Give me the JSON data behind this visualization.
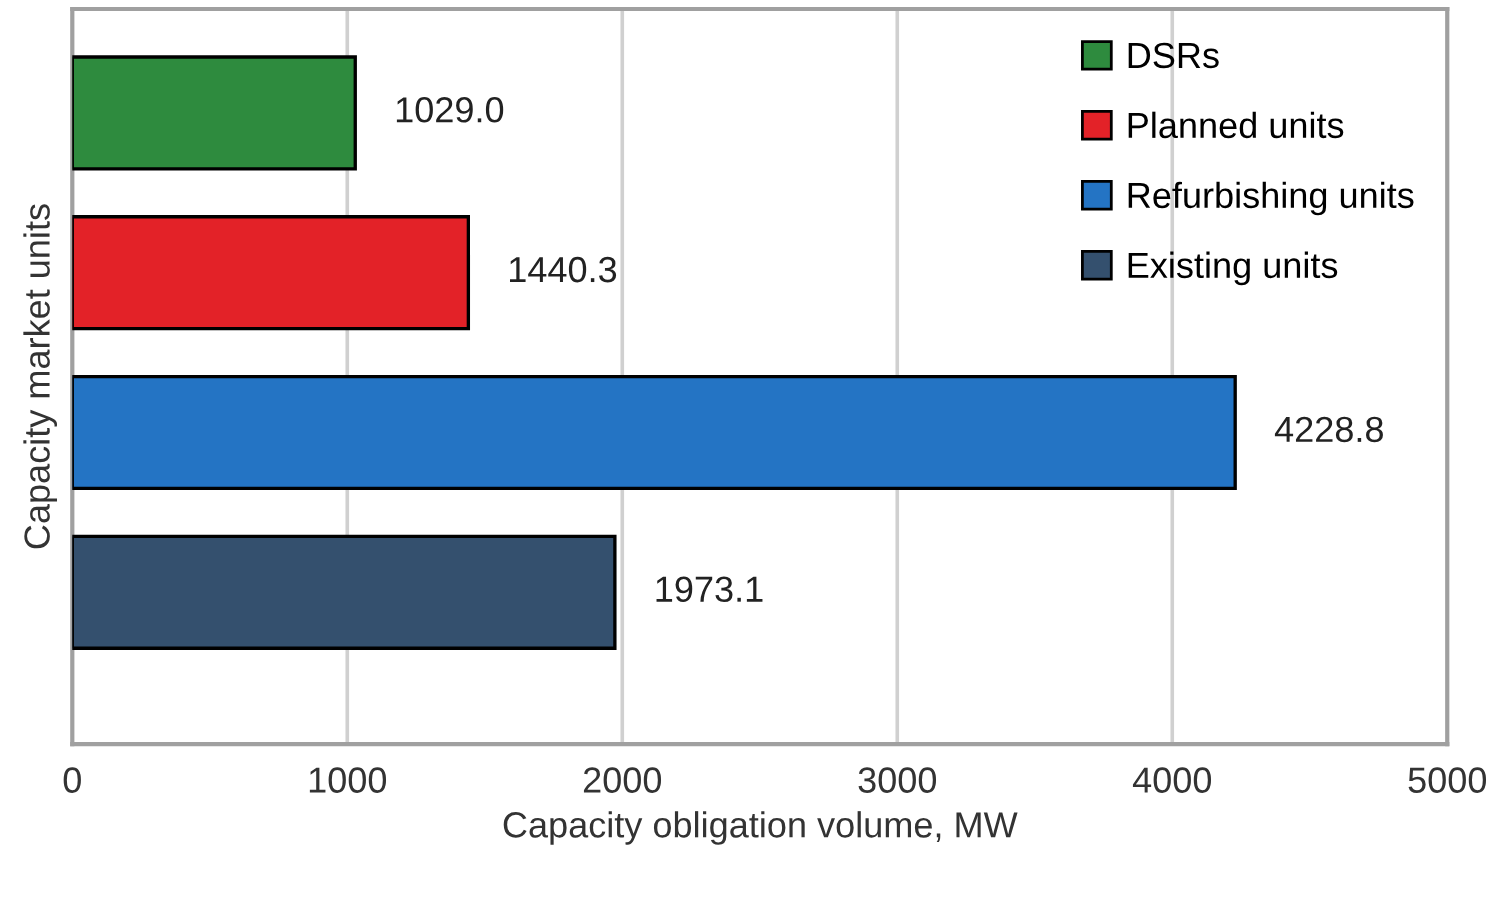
{
  "chart_data": {
    "type": "bar",
    "orientation": "horizontal",
    "xlabel": "Capacity obligation volume, MW",
    "ylabel": "Capacity market units",
    "categories": [
      null,
      null,
      null,
      null
    ],
    "series": [
      {
        "name": "DSRs",
        "color": "#2e8b3e",
        "values": [
          1029.0,
          null,
          null,
          null
        ],
        "value_labels": [
          "1029.0",
          null,
          null,
          null
        ]
      },
      {
        "name": "Planned units",
        "color": "#e32228",
        "values": [
          null,
          1440.3,
          null,
          null
        ],
        "value_labels": [
          null,
          "1440.3",
          null,
          null
        ]
      },
      {
        "name": "Refurbishing units",
        "color": "#2474c4",
        "values": [
          null,
          null,
          4228.8,
          null
        ],
        "value_labels": [
          null,
          null,
          "4228.8",
          null
        ]
      },
      {
        "name": "Existing units",
        "color": "#34506e",
        "values": [
          null,
          null,
          null,
          1973.1
        ],
        "value_labels": [
          null,
          null,
          null,
          "1973.1"
        ]
      }
    ],
    "xlim": [
      0,
      5000
    ],
    "xticks": [
      0,
      1000,
      2000,
      3000,
      4000,
      5000
    ],
    "grid": "x",
    "legend": "top right"
  }
}
